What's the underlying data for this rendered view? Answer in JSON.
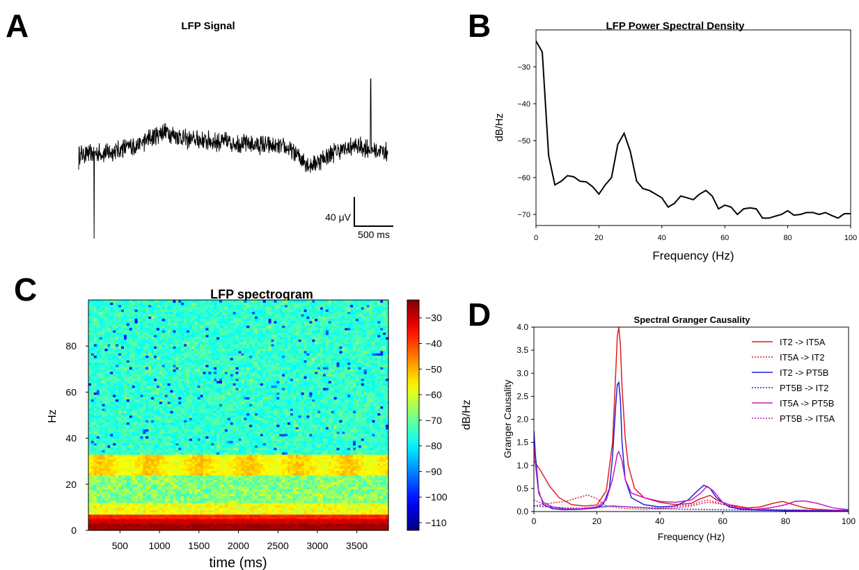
{
  "panels": {
    "a": {
      "letter": "A",
      "title": "LFP Signal",
      "scalebar": {
        "v_label": "40 μV",
        "h_label": "500 ms"
      }
    },
    "b": {
      "letter": "B",
      "title": "LFP Power Spectral Density",
      "xlabel": "Frequency (Hz)",
      "ylabel": "dB/Hz"
    },
    "c": {
      "letter": "C",
      "title": "LFP spectrogram",
      "xlabel": "time (ms)",
      "ylabel": "Hz",
      "colorbar_label": "dB/Hz"
    },
    "d": {
      "letter": "D",
      "title": "Spectral Granger Causality",
      "xlabel": "Frequency (Hz)",
      "ylabel": "Granger Causality"
    }
  },
  "chart_data": [
    {
      "id": "lfp-signal",
      "type": "line",
      "title": "LFP Signal",
      "xlabel": "",
      "ylabel": "",
      "axes_visible": false,
      "note": "",
      "x_duration_ms": 4000,
      "envelope": [
        {
          "t": 0,
          "y": 0
        },
        {
          "t": 400,
          "y": 5
        },
        {
          "t": 800,
          "y": 25
        },
        {
          "t": 1100,
          "y": 55
        },
        {
          "t": 1400,
          "y": 35
        },
        {
          "t": 1800,
          "y": 30
        },
        {
          "t": 2200,
          "y": 25
        },
        {
          "t": 2700,
          "y": 15
        },
        {
          "t": 3000,
          "y": -25
        },
        {
          "t": 3300,
          "y": 5
        },
        {
          "t": 3600,
          "y": 20
        },
        {
          "t": 4000,
          "y": 5
        }
      ],
      "spikes": [
        {
          "t": 200,
          "y": -195
        },
        {
          "t": 3780,
          "y": 175
        }
      ]
    },
    {
      "id": "lfp-psd",
      "type": "line",
      "title": "LFP Power Spectral Density",
      "xlabel": "Frequency (Hz)",
      "ylabel": "dB/Hz",
      "xlim": [
        0,
        100
      ],
      "ylim": [
        -73,
        -20
      ],
      "xticks": [
        0,
        20,
        40,
        60,
        80,
        100
      ],
      "yticks": [
        -70,
        -60,
        -50,
        -40,
        -30
      ],
      "x": [
        0,
        2,
        4,
        6,
        8,
        10,
        12,
        14,
        16,
        18,
        20,
        22,
        24,
        26,
        28,
        30,
        32,
        34,
        36,
        38,
        40,
        42,
        44,
        46,
        48,
        50,
        52,
        54,
        56,
        58,
        60,
        62,
        64,
        66,
        68,
        70,
        72,
        74,
        76,
        78,
        80,
        82,
        84,
        86,
        88,
        90,
        92,
        94,
        96,
        98,
        100
      ],
      "y": [
        -23,
        -26,
        -54,
        -62,
        -61,
        -59.5,
        -59.8,
        -61,
        -61.2,
        -62.5,
        -64.5,
        -62,
        -60,
        -51,
        -48,
        -53,
        -61,
        -63,
        -63.5,
        -64.5,
        -65.5,
        -68,
        -67,
        -65,
        -65.5,
        -66,
        -64.5,
        -63.5,
        -65,
        -68.5,
        -67.5,
        -68,
        -70,
        -68.5,
        -68.2,
        -68.5,
        -71,
        -71,
        -70.5,
        -70,
        -69,
        -70.2,
        -70,
        -69.5,
        -69.5,
        -70,
        -69.5,
        -70.3,
        -71,
        -69.8,
        -69.8
      ]
    },
    {
      "id": "lfp-spectrogram",
      "type": "heatmap",
      "title": "LFP spectrogram",
      "xlabel": "time (ms)",
      "ylabel": "Hz",
      "xlim": [
        100,
        3900
      ],
      "ylim": [
        0,
        100
      ],
      "xticks": [
        500,
        1000,
        1500,
        2000,
        2500,
        3000,
        3500
      ],
      "yticks": [
        0,
        20,
        40,
        60,
        80
      ],
      "colorbar": {
        "label": "dB/Hz",
        "range": [
          -113,
          -23
        ],
        "ticks": [
          -30,
          -40,
          -50,
          -60,
          -70,
          -80,
          -90,
          -100,
          -110
        ]
      },
      "bands": [
        {
          "f_from": 0,
          "f_to": 3,
          "db": -26
        },
        {
          "f_from": 3,
          "f_to": 5,
          "db": -30
        },
        {
          "f_from": 5,
          "f_to": 7.5,
          "db": -37
        },
        {
          "f_from": 7.5,
          "f_to": 12,
          "db": -58
        },
        {
          "f_from": 12,
          "f_to": 24,
          "db": -68
        },
        {
          "f_from": 24,
          "f_to": 33,
          "db": -55
        },
        {
          "f_from": 33,
          "f_to": 100,
          "db": -75
        }
      ]
    },
    {
      "id": "granger-causality",
      "type": "line",
      "title": "Spectral Granger Causality",
      "xlabel": "Frequency (Hz)",
      "ylabel": "Granger Causality",
      "xlim": [
        0,
        100
      ],
      "ylim": [
        0,
        4
      ],
      "xticks": [
        0,
        20,
        40,
        60,
        80,
        100
      ],
      "yticks": [
        0.0,
        0.5,
        1.0,
        1.5,
        2.0,
        2.5,
        3.0,
        3.5,
        4.0
      ],
      "legend_position": "top-right",
      "series": [
        {
          "name": "IT2 -> IT5A",
          "color": "#e41a1c",
          "dashed": false,
          "x": [
            0,
            2,
            5,
            8,
            12,
            16,
            20,
            23,
            25,
            26,
            26.5,
            27,
            27.5,
            28,
            29,
            30,
            32,
            35,
            40,
            45,
            50,
            53,
            56,
            58,
            62,
            68,
            72,
            76,
            79,
            82,
            86,
            90,
            95,
            100
          ],
          "y": [
            1.1,
            0.9,
            0.55,
            0.3,
            0.15,
            0.12,
            0.14,
            0.45,
            1.5,
            3.0,
            3.8,
            4.0,
            3.6,
            2.7,
            1.6,
            1.0,
            0.5,
            0.3,
            0.2,
            0.15,
            0.18,
            0.28,
            0.35,
            0.25,
            0.15,
            0.08,
            0.1,
            0.18,
            0.22,
            0.16,
            0.08,
            0.05,
            0.03,
            0.03
          ]
        },
        {
          "name": "IT5A -> IT2",
          "color": "#e41a1c",
          "dashed": true,
          "x": [
            0,
            5,
            10,
            14,
            17,
            20,
            23,
            27,
            30,
            35,
            40,
            45,
            50,
            55,
            58,
            65,
            70,
            80,
            90,
            100
          ],
          "y": [
            0.12,
            0.18,
            0.22,
            0.3,
            0.36,
            0.28,
            0.12,
            0.08,
            0.06,
            0.05,
            0.06,
            0.08,
            0.12,
            0.2,
            0.18,
            0.08,
            0.05,
            0.04,
            0.03,
            0.02
          ]
        },
        {
          "name": "IT2 -> PT5B",
          "color": "#1f1fd8",
          "dashed": false,
          "x": [
            0,
            0.5,
            1.5,
            3,
            6,
            10,
            15,
            20,
            22,
            24,
            25,
            26,
            26.5,
            27,
            27.5,
            28,
            29,
            31,
            35,
            40,
            45,
            49,
            52,
            54,
            56,
            58,
            62,
            66,
            72,
            80,
            90,
            100
          ],
          "y": [
            1.75,
            1.2,
            0.45,
            0.15,
            0.06,
            0.04,
            0.05,
            0.08,
            0.15,
            0.5,
            1.2,
            2.3,
            2.75,
            2.8,
            2.4,
            1.5,
            0.7,
            0.3,
            0.15,
            0.1,
            0.12,
            0.25,
            0.45,
            0.57,
            0.5,
            0.3,
            0.1,
            0.05,
            0.03,
            0.02,
            0.02,
            0.02
          ]
        },
        {
          "name": "PT5B -> IT2",
          "color": "#1f1fd8",
          "dashed": true,
          "x": [
            0,
            5,
            10,
            15,
            20,
            25,
            30,
            35,
            40,
            50,
            60,
            70,
            80,
            90,
            100
          ],
          "y": [
            0.12,
            0.1,
            0.08,
            0.07,
            0.1,
            0.12,
            0.1,
            0.08,
            0.06,
            0.05,
            0.04,
            0.03,
            0.03,
            0.02,
            0.02
          ]
        },
        {
          "name": "IT5A -> PT5B",
          "color": "#c21bc2",
          "dashed": false,
          "x": [
            0,
            0.5,
            1.5,
            3,
            6,
            10,
            15,
            20,
            23,
            25,
            26.5,
            27,
            28,
            29,
            31,
            35,
            40,
            45,
            50,
            53,
            55,
            57,
            60,
            65,
            70,
            75,
            80,
            83,
            86,
            90,
            95,
            100
          ],
          "y": [
            1.45,
            1.0,
            0.4,
            0.2,
            0.1,
            0.05,
            0.06,
            0.1,
            0.25,
            0.7,
            1.25,
            1.3,
            1.1,
            0.7,
            0.4,
            0.3,
            0.22,
            0.2,
            0.25,
            0.4,
            0.55,
            0.45,
            0.2,
            0.08,
            0.05,
            0.08,
            0.15,
            0.22,
            0.23,
            0.18,
            0.08,
            0.04
          ]
        },
        {
          "name": "PT5B -> IT5A",
          "color": "#c21bc2",
          "dashed": true,
          "x": [
            0,
            5,
            10,
            15,
            20,
            25,
            30,
            40,
            50,
            55,
            58,
            65,
            70,
            80,
            90,
            100
          ],
          "y": [
            0.25,
            0.1,
            0.06,
            0.05,
            0.08,
            0.12,
            0.1,
            0.08,
            0.15,
            0.25,
            0.2,
            0.08,
            0.05,
            0.04,
            0.03,
            0.02
          ]
        }
      ]
    }
  ]
}
